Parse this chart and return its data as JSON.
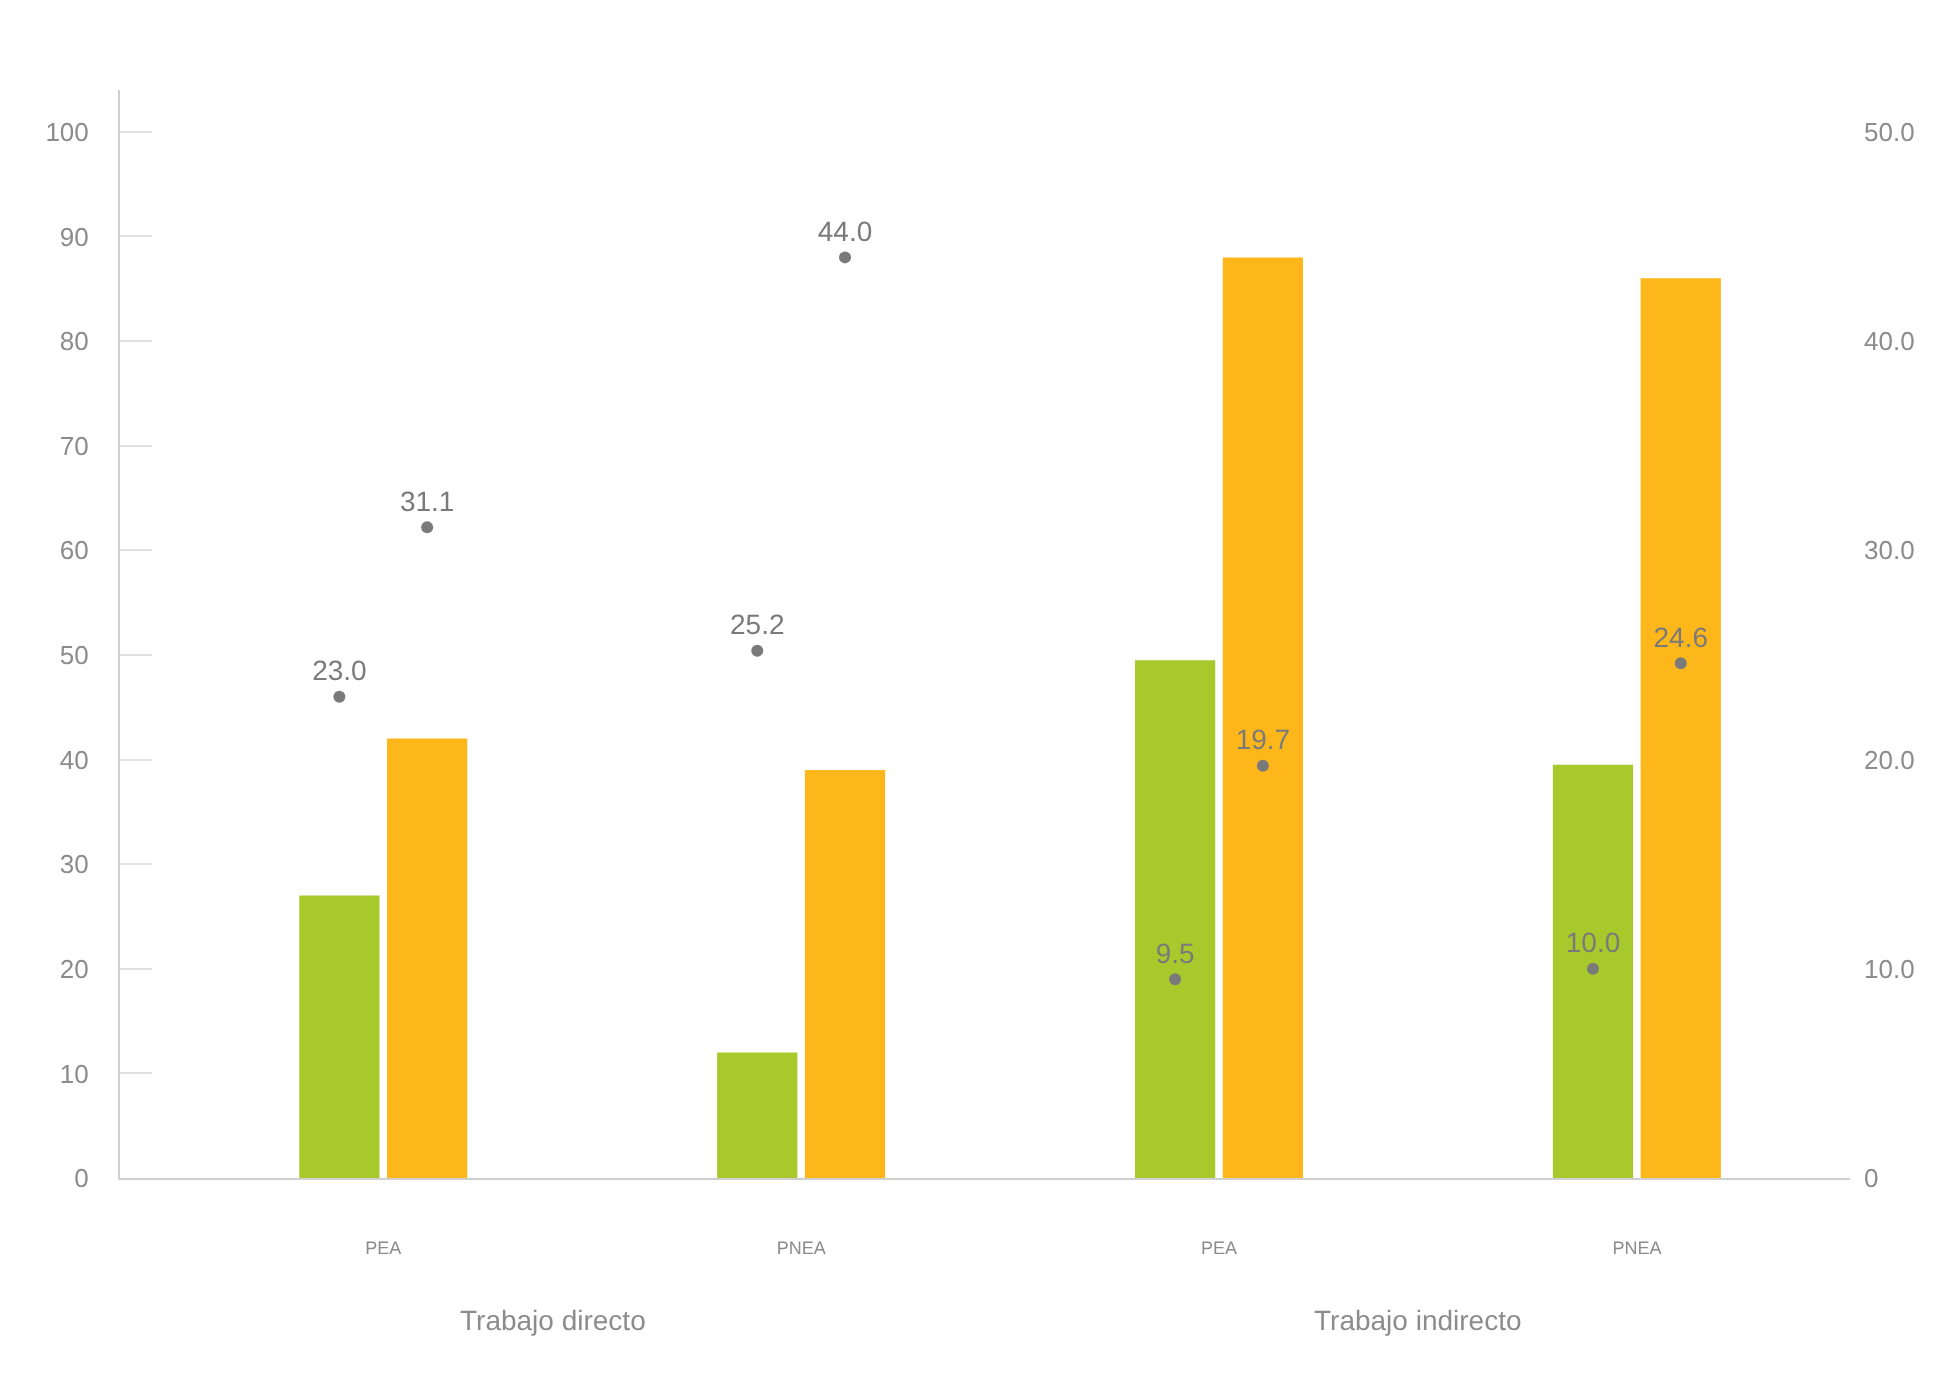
{
  "chart_data": {
    "type": "bar",
    "categories": [
      "PEA",
      "PNEA",
      "PEA",
      "PNEA"
    ],
    "series": [
      {
        "color": "#a8c92c",
        "values": [
          27,
          12,
          49.5,
          39.5
        ]
      },
      {
        "color": "#fdb71b",
        "values": [
          42,
          39,
          88,
          86
        ]
      },
      {
        "type": "scatter",
        "axis": "y2",
        "color": "#7a7a7a",
        "values": [
          23.0,
          25.2,
          9.5,
          10.0
        ],
        "value_labels": [
          "23.0",
          "25.2",
          "9.5",
          "10.0"
        ]
      },
      {
        "type": "scatter",
        "axis": "y2",
        "color": "#7a7a7a",
        "values": [
          31.1,
          44.0,
          19.7,
          24.6
        ],
        "value_labels": [
          "31.1",
          "44.0",
          "19.7",
          "24.6"
        ]
      }
    ],
    "marker": "circle",
    "ylim": [
      0,
      104
    ],
    "yticks": [
      0,
      10,
      20,
      30,
      40,
      50,
      60,
      70,
      80,
      90,
      100
    ],
    "y2lim": [
      0,
      52
    ],
    "y2ticks": [
      0,
      {
        "value": 10,
        "label": "10.0"
      },
      {
        "value": 20,
        "label": "20.0"
      },
      {
        "value": 30,
        "label": "30.0"
      },
      {
        "value": 40,
        "label": "40.0"
      },
      {
        "value": 50,
        "label": "50.0"
      }
    ],
    "annotations": [
      "Trabajo directo",
      "Trabajo indirecto"
    ]
  }
}
